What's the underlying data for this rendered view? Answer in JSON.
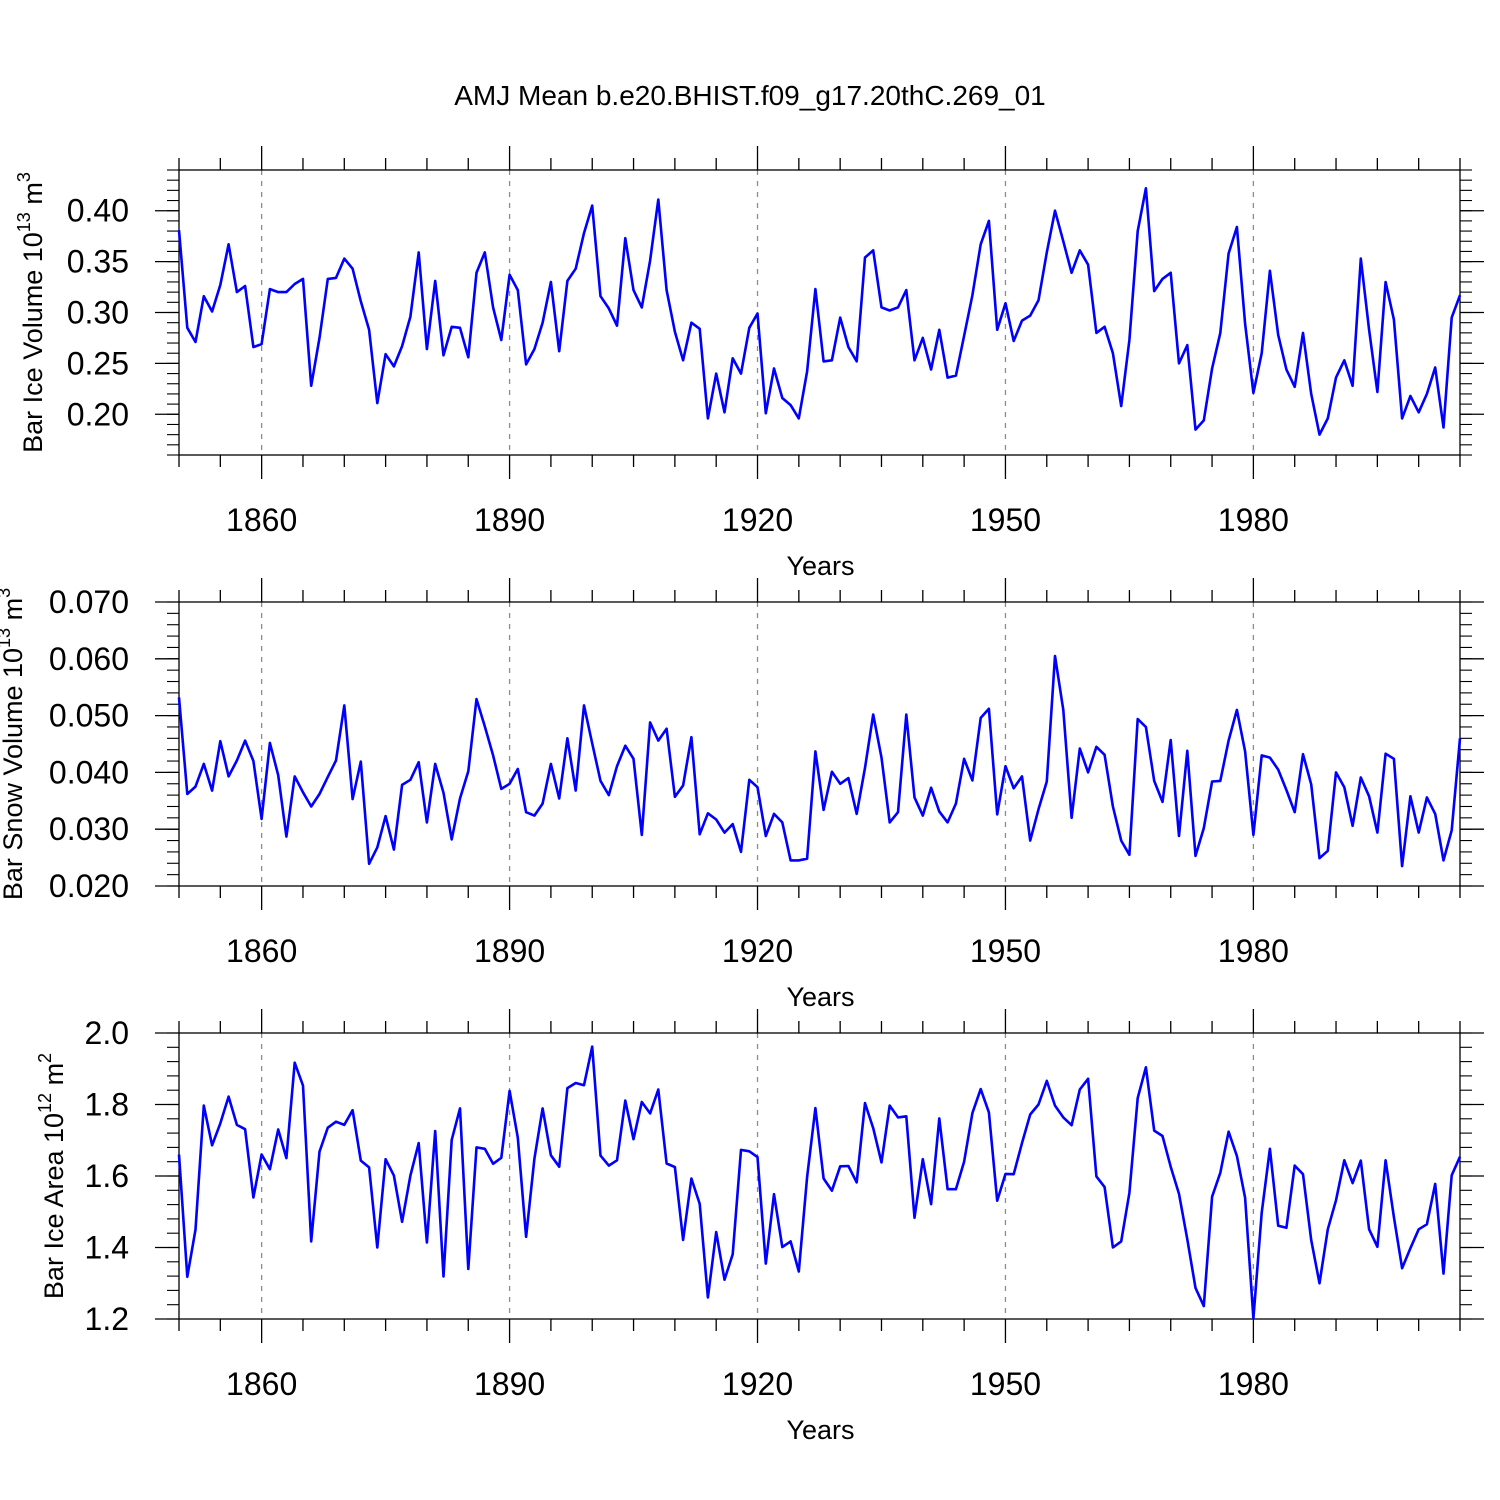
{
  "title": "AMJ Mean b.e20.BHIST.f09_g17.20thC.269_01",
  "chart_data": [
    {
      "type": "line",
      "title": "AMJ Mean b.e20.BHIST.f09_g17.20thC.269_01",
      "xlabel": "Years",
      "ylabel": "Bar Ice Volume 10",
      "ylabel_exponent": "13",
      "ylabel_unit": " m",
      "ylabel_unit_exponent": "3",
      "xlim": [
        1850,
        2005
      ],
      "ylim": [
        0.16,
        0.44
      ],
      "yticks": [
        "0.20",
        "0.25",
        "0.30",
        "0.35",
        "0.40"
      ],
      "ytick_values": [
        0.2,
        0.25,
        0.3,
        0.35,
        0.4
      ],
      "xticks": [
        "1860",
        "1890",
        "1920",
        "1950",
        "1980"
      ],
      "xtick_values": [
        1860,
        1890,
        1920,
        1950,
        1980
      ],
      "line_color": "#0000ff",
      "grid": "vertical dashed at major x ticks",
      "series": [
        {
          "name": "Bar Ice Volume",
          "start_year": 1850,
          "values": [
            0.381,
            0.285,
            0.271,
            0.316,
            0.301,
            0.327,
            0.367,
            0.32,
            0.326,
            0.266,
            0.269,
            0.323,
            0.32,
            0.32,
            0.328,
            0.333,
            0.228,
            0.275,
            0.333,
            0.334,
            0.353,
            0.343,
            0.311,
            0.283,
            0.211,
            0.259,
            0.247,
            0.267,
            0.296,
            0.359,
            0.264,
            0.331,
            0.258,
            0.286,
            0.285,
            0.256,
            0.339,
            0.359,
            0.305,
            0.273,
            0.337,
            0.322,
            0.249,
            0.264,
            0.29,
            0.33,
            0.262,
            0.331,
            0.343,
            0.378,
            0.405,
            0.316,
            0.304,
            0.287,
            0.373,
            0.322,
            0.305,
            0.351,
            0.411,
            0.322,
            0.281,
            0.253,
            0.29,
            0.284,
            0.196,
            0.24,
            0.202,
            0.255,
            0.24,
            0.285,
            0.299,
            0.201,
            0.245,
            0.216,
            0.209,
            0.196,
            0.242,
            0.323,
            0.252,
            0.253,
            0.295,
            0.266,
            0.252,
            0.354,
            0.361,
            0.305,
            0.302,
            0.305,
            0.322,
            0.253,
            0.275,
            0.244,
            0.283,
            0.236,
            0.238,
            0.277,
            0.317,
            0.367,
            0.39,
            0.283,
            0.309,
            0.272,
            0.292,
            0.297,
            0.312,
            0.359,
            0.4,
            0.37,
            0.339,
            0.361,
            0.347,
            0.28,
            0.286,
            0.26,
            0.208,
            0.273,
            0.38,
            0.422,
            0.321,
            0.333,
            0.339,
            0.25,
            0.268,
            0.185,
            0.194,
            0.245,
            0.28,
            0.358,
            0.384,
            0.289,
            0.221,
            0.26,
            0.341,
            0.278,
            0.244,
            0.227,
            0.28,
            0.22,
            0.18,
            0.196,
            0.236,
            0.253,
            0.228,
            0.353,
            0.283,
            0.222,
            0.33,
            0.293,
            0.196,
            0.218,
            0.202,
            0.22,
            0.246,
            0.187,
            0.295,
            0.317
          ]
        }
      ]
    },
    {
      "type": "line",
      "xlabel": "Years",
      "ylabel": "Bar Snow Volume 10",
      "ylabel_exponent": "13",
      "ylabel_unit": " m",
      "ylabel_unit_exponent": "3",
      "xlim": [
        1850,
        2005
      ],
      "ylim": [
        0.02,
        0.07
      ],
      "yticks": [
        "0.020",
        "0.030",
        "0.040",
        "0.050",
        "0.060",
        "0.070"
      ],
      "ytick_values": [
        0.02,
        0.03,
        0.04,
        0.05,
        0.06,
        0.07
      ],
      "xticks": [
        "1860",
        "1890",
        "1920",
        "1950",
        "1980"
      ],
      "xtick_values": [
        1860,
        1890,
        1920,
        1950,
        1980
      ],
      "line_color": "#0000ff",
      "grid": "vertical dashed at major x ticks",
      "series": [
        {
          "name": "Bar Snow Volume",
          "start_year": 1850,
          "values": [
            0.0532,
            0.0362,
            0.0375,
            0.0415,
            0.0368,
            0.0455,
            0.0393,
            0.0421,
            0.0456,
            0.042,
            0.0318,
            0.0452,
            0.0395,
            0.0287,
            0.0393,
            0.0365,
            0.034,
            0.0362,
            0.0392,
            0.0421,
            0.0518,
            0.0353,
            0.0419,
            0.0239,
            0.0268,
            0.0323,
            0.0264,
            0.0378,
            0.0387,
            0.0418,
            0.0312,
            0.0415,
            0.0364,
            0.0282,
            0.0354,
            0.0402,
            0.0529,
            0.0481,
            0.043,
            0.0371,
            0.038,
            0.0406,
            0.033,
            0.0324,
            0.0345,
            0.0415,
            0.0354,
            0.046,
            0.0368,
            0.0518,
            0.0451,
            0.0385,
            0.036,
            0.0411,
            0.0447,
            0.0424,
            0.029,
            0.0488,
            0.0456,
            0.0477,
            0.0357,
            0.0377,
            0.0462,
            0.0291,
            0.0328,
            0.0317,
            0.0294,
            0.0309,
            0.026,
            0.0387,
            0.0374,
            0.0288,
            0.0327,
            0.0312,
            0.0245,
            0.0245,
            0.0248,
            0.0437,
            0.0334,
            0.0401,
            0.038,
            0.039,
            0.0327,
            0.0408,
            0.0502,
            0.0426,
            0.0312,
            0.033,
            0.0502,
            0.0356,
            0.0324,
            0.0373,
            0.0331,
            0.0312,
            0.0345,
            0.0424,
            0.0386,
            0.0496,
            0.0512,
            0.0326,
            0.0411,
            0.0372,
            0.0393,
            0.028,
            0.0335,
            0.0384,
            0.0605,
            0.051,
            0.032,
            0.0442,
            0.04,
            0.0445,
            0.0431,
            0.034,
            0.028,
            0.0255,
            0.0494,
            0.048,
            0.0385,
            0.0348,
            0.0457,
            0.0288,
            0.0438,
            0.0253,
            0.0302,
            0.0384,
            0.0385,
            0.0456,
            0.051,
            0.0437,
            0.029,
            0.043,
            0.0426,
            0.0405,
            0.0369,
            0.033,
            0.0432,
            0.0379,
            0.0249,
            0.0262,
            0.04,
            0.0374,
            0.0306,
            0.0391,
            0.0358,
            0.0294,
            0.0433,
            0.0424,
            0.0235,
            0.0358,
            0.0294,
            0.0356,
            0.0327,
            0.0245,
            0.0298,
            0.046
          ]
        }
      ]
    },
    {
      "type": "line",
      "xlabel": "Years",
      "ylabel": "Bar Ice Area 10",
      "ylabel_exponent": "12",
      "ylabel_unit": " m",
      "ylabel_unit_exponent": "2",
      "xlim": [
        1850,
        2005
      ],
      "ylim": [
        1.2,
        2.0
      ],
      "yticks": [
        "1.2",
        "1.4",
        "1.6",
        "1.8",
        "2.0"
      ],
      "ytick_values": [
        1.2,
        1.4,
        1.6,
        1.8,
        2.0
      ],
      "xticks": [
        "1860",
        "1890",
        "1920",
        "1950",
        "1980"
      ],
      "xtick_values": [
        1860,
        1890,
        1920,
        1950,
        1980
      ],
      "line_color": "#0000ff",
      "grid": "vertical dashed at major x ticks",
      "series": [
        {
          "name": "Bar Ice Area",
          "start_year": 1850,
          "values": [
            1.66,
            1.318,
            1.45,
            1.797,
            1.686,
            1.747,
            1.822,
            1.743,
            1.731,
            1.54,
            1.66,
            1.619,
            1.73,
            1.65,
            1.917,
            1.853,
            1.417,
            1.668,
            1.735,
            1.752,
            1.743,
            1.784,
            1.643,
            1.624,
            1.4,
            1.647,
            1.601,
            1.472,
            1.601,
            1.692,
            1.414,
            1.726,
            1.319,
            1.701,
            1.789,
            1.34,
            1.68,
            1.676,
            1.634,
            1.651,
            1.838,
            1.707,
            1.43,
            1.648,
            1.789,
            1.658,
            1.626,
            1.846,
            1.86,
            1.854,
            1.962,
            1.657,
            1.629,
            1.644,
            1.811,
            1.703,
            1.807,
            1.775,
            1.842,
            1.635,
            1.625,
            1.421,
            1.593,
            1.522,
            1.26,
            1.443,
            1.31,
            1.381,
            1.673,
            1.669,
            1.653,
            1.355,
            1.549,
            1.401,
            1.417,
            1.333,
            1.597,
            1.79,
            1.593,
            1.559,
            1.627,
            1.628,
            1.582,
            1.804,
            1.734,
            1.638,
            1.797,
            1.764,
            1.767,
            1.483,
            1.647,
            1.521,
            1.761,
            1.563,
            1.563,
            1.64,
            1.776,
            1.843,
            1.778,
            1.531,
            1.606,
            1.605,
            1.692,
            1.772,
            1.8,
            1.866,
            1.797,
            1.764,
            1.742,
            1.842,
            1.872,
            1.599,
            1.569,
            1.4,
            1.417,
            1.553,
            1.818,
            1.904,
            1.727,
            1.712,
            1.626,
            1.55,
            1.423,
            1.287,
            1.236,
            1.542,
            1.609,
            1.724,
            1.656,
            1.539,
            1.202,
            1.497,
            1.676,
            1.461,
            1.455,
            1.629,
            1.605,
            1.421,
            1.3,
            1.451,
            1.532,
            1.644,
            1.58,
            1.643,
            1.451,
            1.402,
            1.644,
            1.485,
            1.342,
            1.398,
            1.451,
            1.465,
            1.578,
            1.327,
            1.602,
            1.654
          ]
        }
      ]
    }
  ]
}
